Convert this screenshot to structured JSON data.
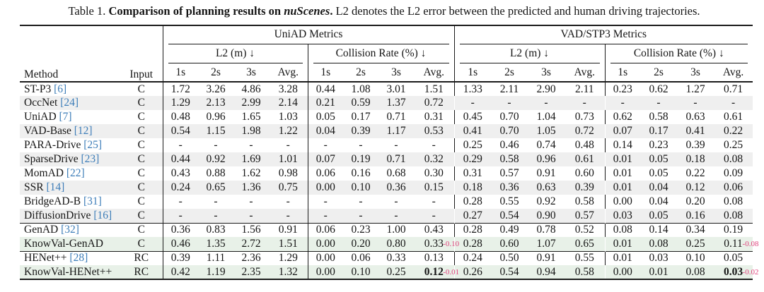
{
  "caption": {
    "label": "Table 1. ",
    "bold_text": "Comparison of planning results on ",
    "bold_italic": "nuScenes",
    "bold_period": ". ",
    "rest": "L2 denotes the L2 error between the predicted and human driving trajectories."
  },
  "header": {
    "method": "Method",
    "input": "Input",
    "groups": [
      {
        "label": "UniAD Metrics",
        "subgroups": [
          "L2 (m) ↓",
          "Collision Rate (%) ↓"
        ]
      },
      {
        "label": "VAD/STP3 Metrics",
        "subgroups": [
          "L2 (m) ↓",
          "Collision Rate (%) ↓"
        ]
      }
    ],
    "time_cols": [
      "1s",
      "2s",
      "3s",
      "Avg."
    ]
  },
  "colors": {
    "citation_blue": "#3d7db8",
    "delta_pink": "#e0457e",
    "stripe_gray": "#efefef",
    "highlight_green": "#e8f1e8",
    "rule_dark": "#1a1a1a",
    "text": "#151515"
  },
  "sections": [
    {
      "rows": [
        {
          "method": "ST-P3",
          "cite": "[6]",
          "input": "C",
          "bg": "white",
          "values": [
            "1.72",
            "3.26",
            "4.86",
            "3.28",
            "0.44",
            "1.08",
            "3.01",
            "1.51",
            "1.33",
            "2.11",
            "2.90",
            "2.11",
            "0.23",
            "0.62",
            "1.27",
            "0.71"
          ]
        },
        {
          "method": "OccNet",
          "cite": "[24]",
          "input": "C",
          "bg": "gray",
          "values": [
            "1.29",
            "2.13",
            "2.99",
            "2.14",
            "0.21",
            "0.59",
            "1.37",
            "0.72",
            "-",
            "-",
            "-",
            "-",
            "-",
            "-",
            "-",
            "-"
          ]
        },
        {
          "method": "UniAD",
          "cite": "[7]",
          "input": "C",
          "bg": "white",
          "values": [
            "0.48",
            "0.96",
            "1.65",
            "1.03",
            "0.05",
            "0.17",
            "0.71",
            "0.31",
            "0.45",
            "0.70",
            "1.04",
            "0.73",
            "0.62",
            "0.58",
            "0.63",
            "0.61"
          ]
        },
        {
          "method": "VAD-Base",
          "cite": "[12]",
          "input": "C",
          "bg": "gray",
          "values": [
            "0.54",
            "1.15",
            "1.98",
            "1.22",
            "0.04",
            "0.39",
            "1.17",
            "0.53",
            "0.41",
            "0.70",
            "1.05",
            "0.72",
            "0.07",
            "0.17",
            "0.41",
            "0.22"
          ]
        },
        {
          "method": "PARA-Drive",
          "cite": "[25]",
          "input": "C",
          "bg": "white",
          "values": [
            "-",
            "-",
            "-",
            "-",
            "-",
            "-",
            "-",
            "-",
            "0.25",
            "0.46",
            "0.74",
            "0.48",
            "0.14",
            "0.23",
            "0.39",
            "0.25"
          ]
        },
        {
          "method": "SparseDrive",
          "cite": "[23]",
          "input": "C",
          "bg": "gray",
          "values": [
            "0.44",
            "0.92",
            "1.69",
            "1.01",
            "0.07",
            "0.19",
            "0.71",
            "0.32",
            "0.29",
            "0.58",
            "0.96",
            "0.61",
            "0.01",
            "0.05",
            "0.18",
            "0.08"
          ]
        },
        {
          "method": "MomAD",
          "cite": "[22]",
          "input": "C",
          "bg": "white",
          "values": [
            "0.43",
            "0.88",
            "1.62",
            "0.98",
            "0.06",
            "0.16",
            "0.68",
            "0.30",
            "0.31",
            "0.57",
            "0.91",
            "0.60",
            "0.01",
            "0.05",
            "0.22",
            "0.09"
          ]
        },
        {
          "method": "SSR",
          "cite": "[14]",
          "input": "C",
          "bg": "gray",
          "values": [
            "0.24",
            "0.65",
            "1.36",
            "0.75",
            "0.00",
            "0.10",
            "0.36",
            "0.15",
            "0.18",
            "0.36",
            "0.63",
            "0.39",
            "0.01",
            "0.04",
            "0.12",
            "0.06"
          ]
        },
        {
          "method": "BridgeAD-B",
          "cite": "[31]",
          "input": "C",
          "bg": "white",
          "values": [
            "-",
            "-",
            "-",
            "-",
            "-",
            "-",
            "-",
            "-",
            "0.28",
            "0.55",
            "0.92",
            "0.58",
            "0.00",
            "0.04",
            "0.20",
            "0.08"
          ]
        },
        {
          "method": "DiffusionDrive",
          "cite": "[16]",
          "input": "C",
          "bg": "gray",
          "values": [
            "-",
            "-",
            "-",
            "-",
            "-",
            "-",
            "-",
            "-",
            "0.27",
            "0.54",
            "0.90",
            "0.57",
            "0.03",
            "0.05",
            "0.16",
            "0.08"
          ]
        }
      ]
    },
    {
      "rows": [
        {
          "method": "GenAD",
          "cite": "[32]",
          "input": "C",
          "bg": "white",
          "values": [
            "0.36",
            "0.83",
            "1.56",
            "0.91",
            "0.06",
            "0.23",
            "1.00",
            "0.43",
            "0.28",
            "0.49",
            "0.78",
            "0.52",
            "0.08",
            "0.14",
            "0.34",
            "0.19"
          ]
        },
        {
          "method": "KnowVal-GenAD",
          "cite": "",
          "input": "C",
          "bg": "green",
          "values": [
            "0.46",
            "1.35",
            "2.72",
            "1.51",
            "0.00",
            "0.20",
            "0.80",
            "0.33",
            "0.28",
            "0.60",
            "1.07",
            "0.65",
            "0.01",
            "0.08",
            "0.25",
            "0.11"
          ],
          "deltas": {
            "7": "-0.10",
            "15": "-0.08"
          }
        }
      ]
    },
    {
      "rows": [
        {
          "method": "HENet++",
          "cite": "[28]",
          "input": "RC",
          "bg": "white",
          "values": [
            "0.39",
            "1.11",
            "2.36",
            "1.29",
            "0.00",
            "0.06",
            "0.33",
            "0.13",
            "0.24",
            "0.50",
            "0.91",
            "0.55",
            "0.01",
            "0.03",
            "0.10",
            "0.05"
          ]
        },
        {
          "method": "KnowVal-HENet++",
          "cite": "",
          "input": "RC",
          "bg": "green",
          "values": [
            "0.42",
            "1.19",
            "2.35",
            "1.32",
            "0.00",
            "0.10",
            "0.25",
            "0.12",
            "0.26",
            "0.54",
            "0.94",
            "0.58",
            "0.00",
            "0.01",
            "0.08",
            "0.03"
          ],
          "deltas": {
            "7": "-0.01",
            "15": "-0.02"
          },
          "bold": [
            7,
            15
          ]
        }
      ]
    }
  ]
}
